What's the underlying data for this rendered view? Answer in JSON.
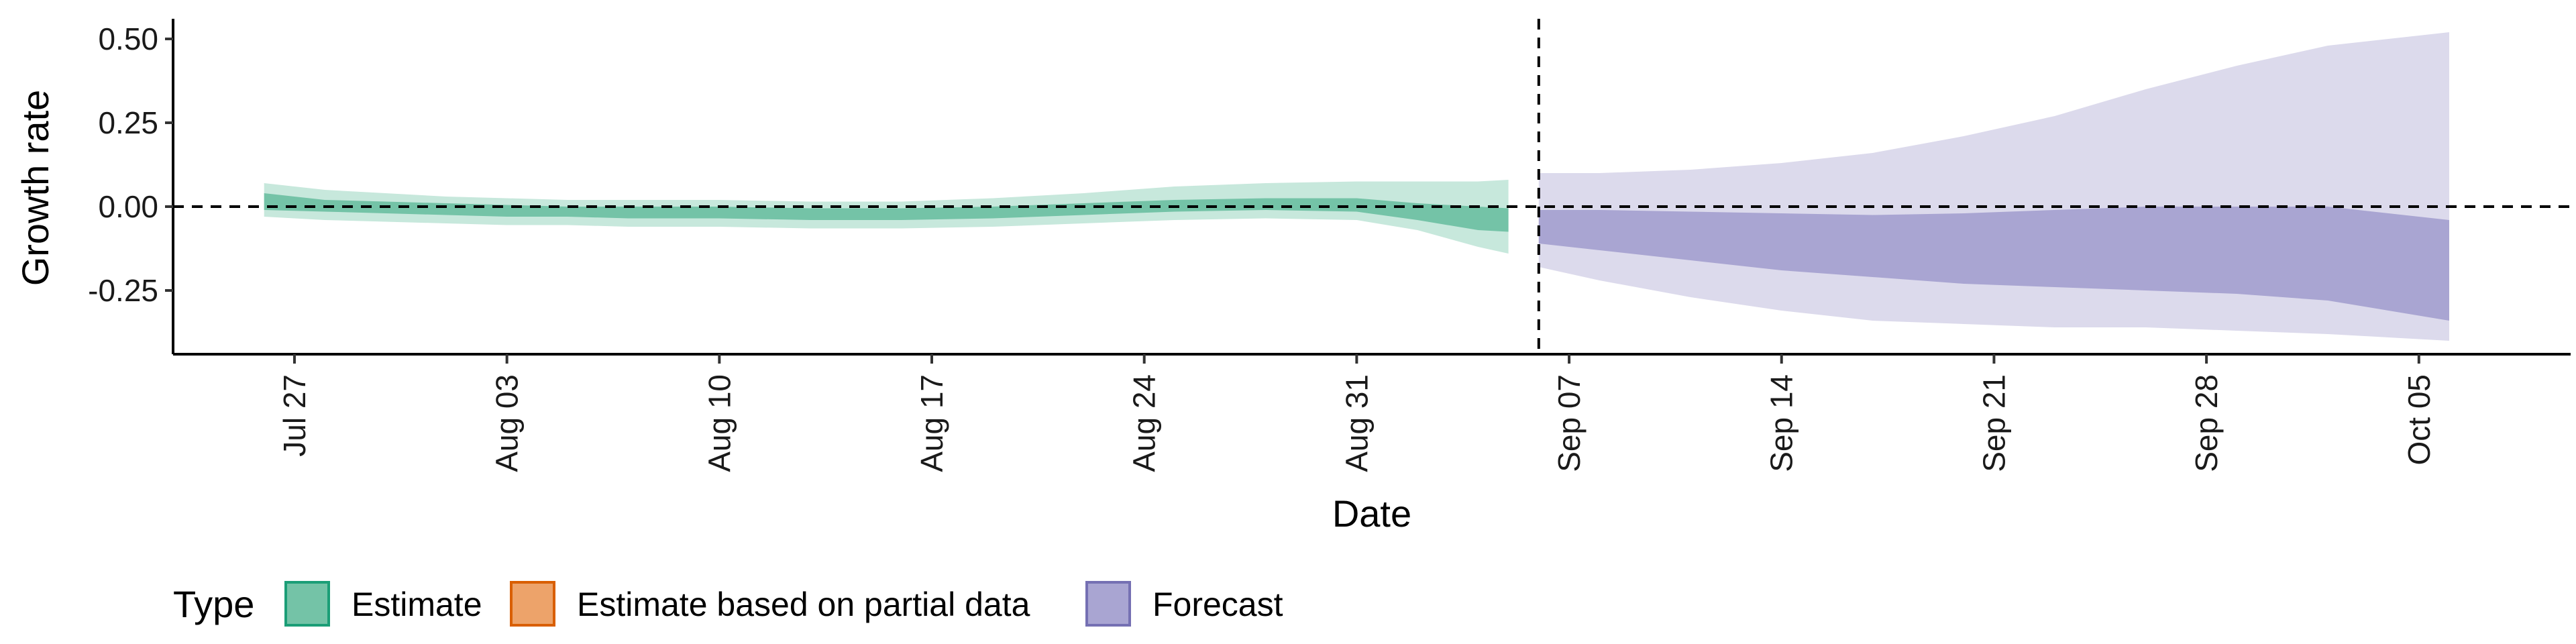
{
  "chart_data": {
    "type": "area",
    "xlabel": "Date",
    "ylabel": "Growth rate",
    "y_ticks": [
      "0.50",
      "0.25",
      "0.00",
      "-0.25"
    ],
    "y_tick_values": [
      0.5,
      0.25,
      0.0,
      -0.25
    ],
    "ylim": [
      -0.44,
      0.56
    ],
    "x_ticks": [
      "Jul 27",
      "Aug 03",
      "Aug 10",
      "Aug 17",
      "Aug 24",
      "Aug 31",
      "Sep 07",
      "Sep 14",
      "Sep 21",
      "Sep 28",
      "Oct 05"
    ],
    "x_tick_dates": [
      "2020-07-27",
      "2020-08-03",
      "2020-08-10",
      "2020-08-17",
      "2020-08-24",
      "2020-08-31",
      "2020-09-07",
      "2020-09-14",
      "2020-09-21",
      "2020-09-28",
      "2020-10-05"
    ],
    "xlim": [
      "2020-07-23",
      "2020-10-10"
    ],
    "reference_lines": {
      "horizontal_y": 0.0,
      "vertical_date": "2020-09-06",
      "style": "dashed"
    },
    "grid": false,
    "legend": {
      "title": "Type",
      "placement": "bottom",
      "entries": [
        {
          "label": "Estimate",
          "fill": "#74c3a7",
          "border": "#1b9e77"
        },
        {
          "label": "Estimate based on partial data",
          "fill": "#eda36a",
          "border": "#d95f02"
        },
        {
          "label": "Forecast",
          "fill": "#a9a5d2",
          "border": "#7570b3"
        }
      ]
    },
    "series": [
      {
        "name": "Estimate",
        "colors": {
          "outer": "#c7e8dc",
          "inner": "#74c3a7"
        },
        "points": [
          {
            "date": "2020-07-26",
            "lo90": -0.03,
            "lo50": -0.01,
            "hi50": 0.04,
            "hi90": 0.07
          },
          {
            "date": "2020-07-28",
            "lo90": -0.04,
            "lo50": -0.015,
            "hi50": 0.02,
            "hi90": 0.05
          },
          {
            "date": "2020-07-30",
            "lo90": -0.045,
            "lo50": -0.02,
            "hi50": 0.015,
            "hi90": 0.04
          },
          {
            "date": "2020-08-01",
            "lo90": -0.05,
            "lo50": -0.025,
            "hi50": 0.01,
            "hi90": 0.03
          },
          {
            "date": "2020-08-03",
            "lo90": -0.055,
            "lo50": -0.03,
            "hi50": 0.005,
            "hi90": 0.025
          },
          {
            "date": "2020-08-05",
            "lo90": -0.055,
            "lo50": -0.03,
            "hi50": 0.0,
            "hi90": 0.02
          },
          {
            "date": "2020-08-07",
            "lo90": -0.06,
            "lo50": -0.035,
            "hi50": 0.0,
            "hi90": 0.02
          },
          {
            "date": "2020-08-10",
            "lo90": -0.06,
            "lo50": -0.035,
            "hi50": 0.0,
            "hi90": 0.02
          },
          {
            "date": "2020-08-13",
            "lo90": -0.065,
            "lo50": -0.04,
            "hi50": -0.005,
            "hi90": 0.015
          },
          {
            "date": "2020-08-16",
            "lo90": -0.065,
            "lo50": -0.04,
            "hi50": -0.005,
            "hi90": 0.015
          },
          {
            "date": "2020-08-19",
            "lo90": -0.06,
            "lo50": -0.035,
            "hi50": 0.0,
            "hi90": 0.025
          },
          {
            "date": "2020-08-22",
            "lo90": -0.05,
            "lo50": -0.025,
            "hi50": 0.01,
            "hi90": 0.04
          },
          {
            "date": "2020-08-25",
            "lo90": -0.04,
            "lo50": -0.015,
            "hi50": 0.02,
            "hi90": 0.06
          },
          {
            "date": "2020-08-28",
            "lo90": -0.035,
            "lo50": -0.01,
            "hi50": 0.025,
            "hi90": 0.07
          },
          {
            "date": "2020-08-31",
            "lo90": -0.04,
            "lo50": -0.015,
            "hi50": 0.025,
            "hi90": 0.075
          },
          {
            "date": "2020-09-02",
            "lo90": -0.07,
            "lo50": -0.04,
            "hi50": 0.01,
            "hi90": 0.075
          },
          {
            "date": "2020-09-04",
            "lo90": -0.12,
            "lo50": -0.07,
            "hi50": 0.0,
            "hi90": 0.075
          },
          {
            "date": "2020-09-05",
            "lo90": -0.14,
            "lo50": -0.075,
            "hi50": -0.005,
            "hi90": 0.08
          }
        ]
      },
      {
        "name": "Forecast",
        "colors": {
          "outer": "#dcdaec",
          "inner": "#a9a5d2"
        },
        "points": [
          {
            "date": "2020-09-06",
            "lo90": -0.18,
            "lo50": -0.11,
            "hi50": -0.01,
            "hi90": 0.1
          },
          {
            "date": "2020-09-08",
            "lo90": -0.22,
            "lo50": -0.13,
            "hi50": -0.01,
            "hi90": 0.1
          },
          {
            "date": "2020-09-11",
            "lo90": -0.27,
            "lo50": -0.16,
            "hi50": -0.015,
            "hi90": 0.11
          },
          {
            "date": "2020-09-14",
            "lo90": -0.31,
            "lo50": -0.19,
            "hi50": -0.02,
            "hi90": 0.13
          },
          {
            "date": "2020-09-17",
            "lo90": -0.34,
            "lo50": -0.21,
            "hi50": -0.025,
            "hi90": 0.16
          },
          {
            "date": "2020-09-20",
            "lo90": -0.35,
            "lo50": -0.23,
            "hi50": -0.02,
            "hi90": 0.21
          },
          {
            "date": "2020-09-23",
            "lo90": -0.36,
            "lo50": -0.24,
            "hi50": -0.01,
            "hi90": 0.27
          },
          {
            "date": "2020-09-26",
            "lo90": -0.36,
            "lo50": -0.25,
            "hi50": 0.0,
            "hi90": 0.35
          },
          {
            "date": "2020-09-29",
            "lo90": -0.37,
            "lo50": -0.26,
            "hi50": 0.0,
            "hi90": 0.42
          },
          {
            "date": "2020-10-02",
            "lo90": -0.38,
            "lo50": -0.28,
            "hi50": 0.0,
            "hi90": 0.48
          },
          {
            "date": "2020-10-06",
            "lo90": -0.4,
            "lo50": -0.34,
            "hi50": -0.04,
            "hi90": 0.52
          }
        ]
      }
    ]
  }
}
